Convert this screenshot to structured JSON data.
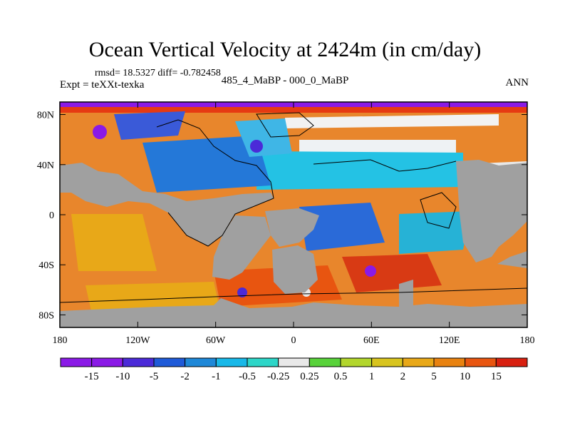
{
  "title": "Ocean Vertical Velocity at 2424m (in cm/day)",
  "stats_text": "rmsd= 18.5327 diff= -0.782458",
  "expt_text": "Expt = teXXt-texka",
  "subtitle": "485_4_MaBP - 000_0_MaBP",
  "season": "ANN",
  "map": {
    "lon_range": [
      -180,
      180
    ],
    "lat_range": [
      -90,
      90
    ],
    "land_color": "#a0a0a0",
    "lat_ticks": [
      {
        "value": 80,
        "label": "80N"
      },
      {
        "value": 40,
        "label": "40N"
      },
      {
        "value": 0,
        "label": "0"
      },
      {
        "value": -40,
        "label": "40S"
      },
      {
        "value": -80,
        "label": "80S"
      }
    ],
    "lon_ticks": [
      {
        "value": -180,
        "label": "180"
      },
      {
        "value": -120,
        "label": "120W"
      },
      {
        "value": -60,
        "label": "60W"
      },
      {
        "value": 0,
        "label": "0"
      },
      {
        "value": 60,
        "label": "60E"
      },
      {
        "value": 120,
        "label": "120E"
      },
      {
        "value": 180,
        "label": "180"
      }
    ]
  },
  "colorbar": {
    "colors": [
      "#8a1ae6",
      "#4b2ad8",
      "#1f5ad8",
      "#1e88d8",
      "#18b8e8",
      "#2dd6c8",
      "#e8e8e8",
      "#58d23a",
      "#b2d62c",
      "#d8c41e",
      "#e8a818",
      "#e88210",
      "#e85510",
      "#d82010"
    ],
    "labels": [
      "-15",
      "-10",
      "-5",
      "-2",
      "-1",
      "-0.5",
      "-0.25",
      "0.25",
      "0.5",
      "1",
      "2",
      "5",
      "10",
      "15"
    ]
  }
}
